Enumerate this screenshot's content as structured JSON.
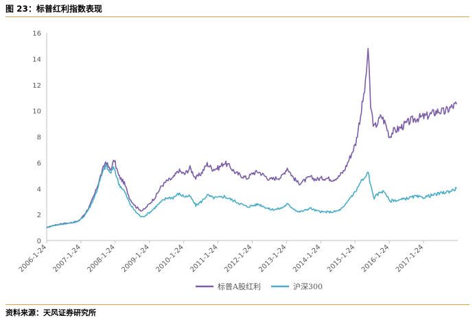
{
  "figure": {
    "title": "图 23：标普红利指数表现",
    "source": "资料来源：天风证券研究所"
  },
  "colors": {
    "accent_rule": "#d9a441",
    "axis": "#bfbfbf"
  },
  "chart_data": {
    "type": "line",
    "title": "图 23：标普红利指数表现",
    "xlabel": "",
    "ylabel": "",
    "ylim": [
      0,
      16
    ],
    "yticks": [
      0,
      2,
      4,
      6,
      8,
      10,
      12,
      14,
      16
    ],
    "xlim": [
      "2006-01-24",
      "2018-01-24"
    ],
    "xticks": [
      "2006-1-24",
      "2007-1-24",
      "2008-1-24",
      "2009-1-24",
      "2010-1-24",
      "2011-1-24",
      "2012-1-24",
      "2013-1-24",
      "2014-1-24",
      "2015-1-24",
      "2016-1-24",
      "2017-1-24"
    ],
    "grid": false,
    "legend": "bottom-center",
    "series": [
      {
        "name": "标普A股红利",
        "color": "#7b5ea7",
        "x": [
          "2006-01-24",
          "2006-04-01",
          "2006-07-01",
          "2006-10-01",
          "2007-01-01",
          "2007-03-01",
          "2007-05-01",
          "2007-07-01",
          "2007-09-01",
          "2007-10-15",
          "2007-12-01",
          "2008-01-15",
          "2008-03-01",
          "2008-05-01",
          "2008-07-01",
          "2008-09-01",
          "2008-11-01",
          "2008-12-01",
          "2009-02-01",
          "2009-04-01",
          "2009-06-01",
          "2009-08-01",
          "2009-10-01",
          "2009-12-01",
          "2010-02-01",
          "2010-04-01",
          "2010-06-01",
          "2010-08-01",
          "2010-10-01",
          "2010-12-01",
          "2011-02-01",
          "2011-04-01",
          "2011-06-01",
          "2011-08-01",
          "2011-10-01",
          "2011-12-01",
          "2012-02-01",
          "2012-04-01",
          "2012-06-01",
          "2012-08-01",
          "2012-10-01",
          "2012-12-01",
          "2013-02-01",
          "2013-04-01",
          "2013-06-01",
          "2013-08-01",
          "2013-10-01",
          "2013-12-01",
          "2014-02-01",
          "2014-04-01",
          "2014-06-01",
          "2014-08-01",
          "2014-10-01",
          "2014-12-01",
          "2015-02-01",
          "2015-04-01",
          "2015-05-15",
          "2015-06-12",
          "2015-07-10",
          "2015-08-15",
          "2015-09-15",
          "2015-11-01",
          "2015-12-15",
          "2016-01-28",
          "2016-03-01",
          "2016-05-01",
          "2016-07-01",
          "2016-09-01",
          "2016-11-01",
          "2017-01-01",
          "2017-03-01",
          "2017-05-01",
          "2017-07-01",
          "2017-09-01",
          "2017-11-01",
          "2018-01-10"
        ],
        "values": [
          1.0,
          1.15,
          1.3,
          1.35,
          1.5,
          2.0,
          2.7,
          3.8,
          5.2,
          6.1,
          5.4,
          6.2,
          5.0,
          4.4,
          3.2,
          2.6,
          2.3,
          2.4,
          2.9,
          3.4,
          4.2,
          4.6,
          4.8,
          5.4,
          5.1,
          5.6,
          4.8,
          5.2,
          5.9,
          5.5,
          5.6,
          6.0,
          5.7,
          5.2,
          5.0,
          4.8,
          5.2,
          5.3,
          5.0,
          4.7,
          4.8,
          4.9,
          5.6,
          4.9,
          4.4,
          4.6,
          4.9,
          4.7,
          4.8,
          4.8,
          4.7,
          4.9,
          5.4,
          6.4,
          7.5,
          10.0,
          12.0,
          14.8,
          10.3,
          8.7,
          9.0,
          9.6,
          9.0,
          8.0,
          8.4,
          8.6,
          8.9,
          9.2,
          9.4,
          9.5,
          9.6,
          9.8,
          10.0,
          9.9,
          10.2,
          10.5
        ]
      },
      {
        "name": "沪深300",
        "color": "#4bacc6",
        "x": [
          "2006-01-24",
          "2006-04-01",
          "2006-07-01",
          "2006-10-01",
          "2007-01-01",
          "2007-03-01",
          "2007-05-01",
          "2007-07-01",
          "2007-09-01",
          "2007-10-15",
          "2007-12-01",
          "2008-01-15",
          "2008-03-01",
          "2008-05-01",
          "2008-07-01",
          "2008-09-01",
          "2008-11-01",
          "2008-12-01",
          "2009-02-01",
          "2009-04-01",
          "2009-06-01",
          "2009-08-01",
          "2009-10-01",
          "2009-12-01",
          "2010-02-01",
          "2010-04-01",
          "2010-06-01",
          "2010-08-01",
          "2010-10-01",
          "2010-12-01",
          "2011-02-01",
          "2011-04-01",
          "2011-06-01",
          "2011-08-01",
          "2011-10-01",
          "2011-12-01",
          "2012-02-01",
          "2012-04-01",
          "2012-06-01",
          "2012-08-01",
          "2012-10-01",
          "2012-12-01",
          "2013-02-01",
          "2013-04-01",
          "2013-06-01",
          "2013-08-01",
          "2013-10-01",
          "2013-12-01",
          "2014-02-01",
          "2014-04-01",
          "2014-06-01",
          "2014-08-01",
          "2014-10-01",
          "2014-12-01",
          "2015-02-01",
          "2015-04-01",
          "2015-05-15",
          "2015-06-12",
          "2015-07-10",
          "2015-08-15",
          "2015-09-15",
          "2015-11-01",
          "2015-12-15",
          "2016-01-28",
          "2016-03-01",
          "2016-05-01",
          "2016-07-01",
          "2016-09-01",
          "2016-11-01",
          "2017-01-01",
          "2017-03-01",
          "2017-05-01",
          "2017-07-01",
          "2017-09-01",
          "2017-11-01",
          "2018-01-10"
        ],
        "values": [
          1.0,
          1.15,
          1.25,
          1.35,
          1.5,
          1.9,
          2.6,
          3.6,
          5.0,
          5.8,
          5.2,
          5.6,
          4.4,
          3.8,
          2.8,
          2.2,
          1.8,
          1.9,
          2.2,
          2.6,
          3.0,
          3.3,
          3.3,
          3.6,
          3.4,
          3.4,
          2.7,
          3.0,
          3.5,
          3.3,
          3.3,
          3.4,
          3.2,
          3.0,
          2.8,
          2.6,
          2.7,
          2.8,
          2.6,
          2.4,
          2.4,
          2.5,
          2.8,
          2.5,
          2.2,
          2.3,
          2.5,
          2.3,
          2.2,
          2.2,
          2.2,
          2.3,
          2.6,
          3.3,
          3.8,
          4.6,
          4.8,
          5.4,
          4.2,
          3.3,
          3.5,
          3.8,
          3.7,
          3.0,
          3.1,
          3.1,
          3.2,
          3.3,
          3.4,
          3.3,
          3.4,
          3.5,
          3.6,
          3.7,
          3.8,
          4.0
        ]
      }
    ]
  }
}
